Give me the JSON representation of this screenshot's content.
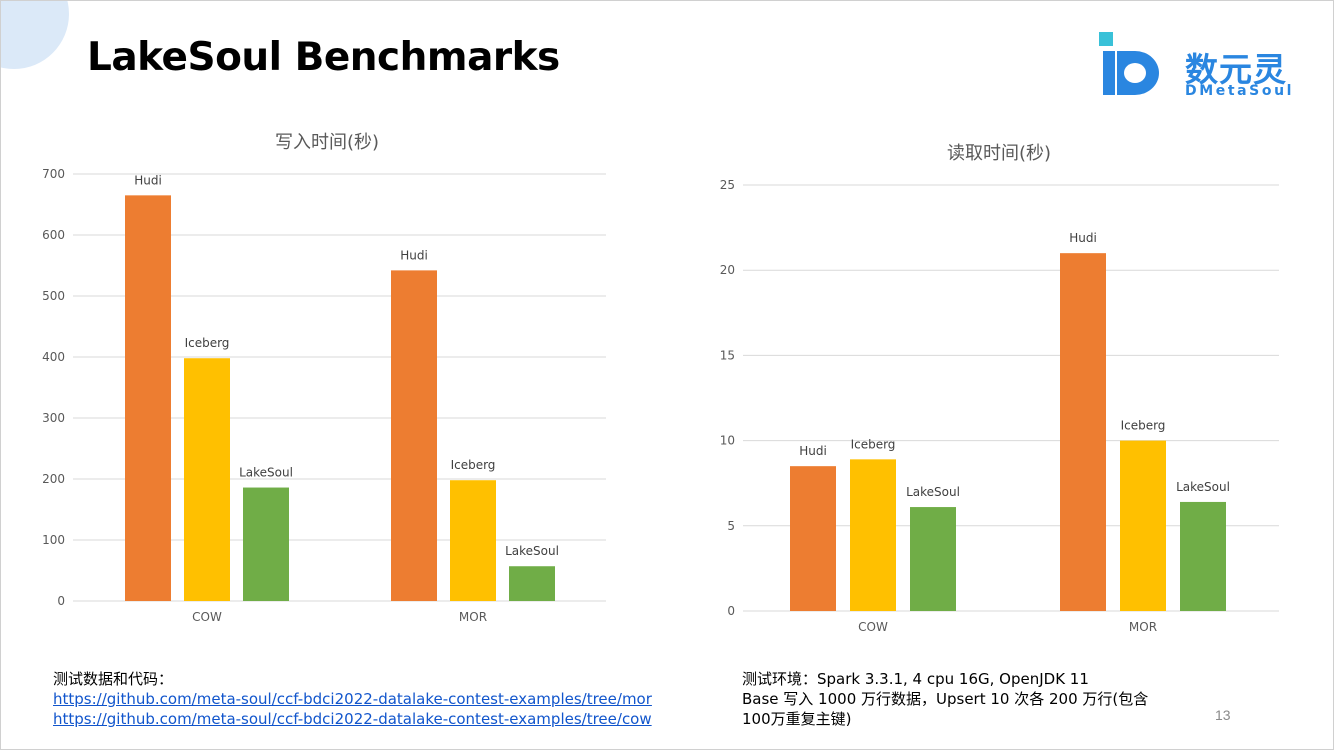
{
  "slide": {
    "title": "LakeSoul Benchmarks",
    "page_number": "13"
  },
  "logo": {
    "name_cn": "数元灵",
    "name_en": "DMetaSoul",
    "colors": {
      "primary": "#2a86e0",
      "accent": "#39c1d8"
    }
  },
  "colors": {
    "hudi": "#ed7d31",
    "iceberg": "#ffc000",
    "lakesoul": "#70ad47",
    "grid": "#d9d9d9",
    "axis_text": "#595959"
  },
  "notes": {
    "left": {
      "heading": "测试数据和代码：",
      "links": [
        "https://github.com/meta-soul/ccf-bdci2022-datalake-contest-examples/tree/mor",
        "https://github.com/meta-soul/ccf-bdci2022-datalake-contest-examples/tree/cow"
      ]
    },
    "right": {
      "line1": "测试环境：Spark 3.3.1, 4 cpu 16G, OpenJDK 11",
      "line2": "Base 写入 1000 万行数据，Upsert 10 次各 200 万行(包含",
      "line3": "100万重复主键)"
    }
  },
  "chart_data": [
    {
      "type": "bar",
      "title": "写入时间(秒)",
      "categories": [
        "COW",
        "MOR"
      ],
      "series": [
        {
          "name": "Hudi",
          "values": [
            665,
            542
          ]
        },
        {
          "name": "Iceberg",
          "values": [
            398,
            198
          ]
        },
        {
          "name": "LakeSoul",
          "values": [
            186,
            57
          ]
        }
      ],
      "ylim": [
        0,
        700
      ],
      "yticks": [
        0,
        100,
        200,
        300,
        400,
        500,
        600,
        700
      ],
      "grid": true,
      "legend": "none (data labels above bars)"
    },
    {
      "type": "bar",
      "title": "读取时间(秒)",
      "categories": [
        "COW",
        "MOR"
      ],
      "series": [
        {
          "name": "Hudi",
          "values": [
            8.5,
            21
          ]
        },
        {
          "name": "Iceberg",
          "values": [
            8.9,
            10
          ]
        },
        {
          "name": "LakeSoul",
          "values": [
            6.1,
            6.4
          ]
        }
      ],
      "ylim": [
        0,
        25
      ],
      "yticks": [
        0,
        5,
        10,
        15,
        20,
        25
      ],
      "grid": true,
      "legend": "none (data labels above bars)"
    }
  ]
}
